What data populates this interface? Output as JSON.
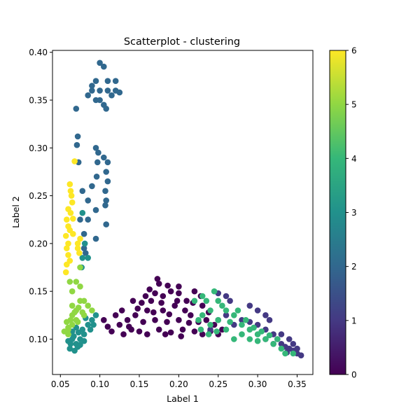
{
  "chart_data": {
    "type": "scatter",
    "title": "Scatterplot - clustering",
    "xlabel": "Label 1",
    "ylabel": "Label 2",
    "xlim": [
      0.04,
      0.37
    ],
    "ylim": [
      0.063,
      0.402
    ],
    "xticks": [
      0.05,
      0.1,
      0.15,
      0.2,
      0.25,
      0.3,
      0.35
    ],
    "xtick_labels": [
      "0.05",
      "0.10",
      "0.15",
      "0.20",
      "0.25",
      "0.30",
      "0.35"
    ],
    "yticks": [
      0.1,
      0.15,
      0.2,
      0.25,
      0.3,
      0.35,
      0.4
    ],
    "ytick_labels": [
      "0.10",
      "0.15",
      "0.20",
      "0.25",
      "0.30",
      "0.35",
      "0.40"
    ],
    "grid": false,
    "colormap": "viridis",
    "colorbar": {
      "range": [
        0,
        6
      ],
      "ticks": [
        0,
        1,
        2,
        3,
        4,
        5,
        6
      ],
      "tick_labels": [
        "0",
        "1",
        "2",
        "3",
        "4",
        "5",
        "6"
      ],
      "stops": [
        "#440154",
        "#443983",
        "#31688e",
        "#21918c",
        "#35b779",
        "#90d743",
        "#fde725"
      ]
    },
    "clusters": [
      {
        "label": 0,
        "color": "#440154",
        "points": [
          [
            0.115,
            0.108
          ],
          [
            0.125,
            0.115
          ],
          [
            0.13,
            0.105
          ],
          [
            0.135,
            0.12
          ],
          [
            0.14,
            0.11
          ],
          [
            0.145,
            0.125
          ],
          [
            0.15,
            0.108
          ],
          [
            0.155,
            0.118
          ],
          [
            0.16,
            0.13
          ],
          [
            0.16,
            0.105
          ],
          [
            0.165,
            0.14
          ],
          [
            0.17,
            0.12
          ],
          [
            0.17,
            0.148
          ],
          [
            0.175,
            0.11
          ],
          [
            0.175,
            0.158
          ],
          [
            0.18,
            0.13
          ],
          [
            0.18,
            0.145
          ],
          [
            0.185,
            0.118
          ],
          [
            0.19,
            0.15
          ],
          [
            0.19,
            0.107
          ],
          [
            0.195,
            0.135
          ],
          [
            0.2,
            0.12
          ],
          [
            0.2,
            0.148
          ],
          [
            0.205,
            0.11
          ],
          [
            0.21,
            0.14
          ],
          [
            0.215,
            0.125
          ],
          [
            0.22,
            0.15
          ],
          [
            0.22,
            0.108
          ],
          [
            0.225,
            0.118
          ],
          [
            0.23,
            0.135
          ],
          [
            0.23,
            0.105
          ],
          [
            0.235,
            0.12
          ],
          [
            0.24,
            0.108
          ],
          [
            0.245,
            0.115
          ],
          [
            0.25,
            0.105
          ],
          [
            0.255,
            0.11
          ],
          [
            0.12,
            0.125
          ],
          [
            0.128,
            0.13
          ],
          [
            0.142,
            0.14
          ],
          [
            0.148,
            0.132
          ],
          [
            0.158,
            0.145
          ],
          [
            0.168,
            0.128
          ],
          [
            0.178,
            0.138
          ],
          [
            0.188,
            0.126
          ],
          [
            0.198,
            0.14
          ],
          [
            0.208,
            0.13
          ],
          [
            0.218,
            0.138
          ],
          [
            0.228,
            0.145
          ],
          [
            0.238,
            0.128
          ],
          [
            0.11,
            0.113
          ],
          [
            0.105,
            0.12
          ],
          [
            0.163,
            0.152
          ],
          [
            0.173,
            0.163
          ],
          [
            0.186,
            0.156
          ],
          [
            0.2,
            0.155
          ],
          [
            0.153,
            0.138
          ],
          [
            0.137,
            0.113
          ],
          [
            0.183,
            0.105
          ],
          [
            0.213,
            0.117
          ],
          [
            0.203,
            0.103
          ]
        ]
      },
      {
        "label": 1,
        "color": "#443983",
        "points": [
          [
            0.24,
            0.11
          ],
          [
            0.25,
            0.12
          ],
          [
            0.26,
            0.125
          ],
          [
            0.27,
            0.115
          ],
          [
            0.28,
            0.12
          ],
          [
            0.29,
            0.118
          ],
          [
            0.3,
            0.115
          ],
          [
            0.31,
            0.11
          ],
          [
            0.32,
            0.105
          ],
          [
            0.325,
            0.1
          ],
          [
            0.33,
            0.095
          ],
          [
            0.335,
            0.092
          ],
          [
            0.34,
            0.09
          ],
          [
            0.345,
            0.088
          ],
          [
            0.35,
            0.085
          ],
          [
            0.355,
            0.083
          ],
          [
            0.29,
            0.135
          ],
          [
            0.3,
            0.13
          ],
          [
            0.31,
            0.125
          ],
          [
            0.315,
            0.12
          ],
          [
            0.25,
            0.148
          ],
          [
            0.26,
            0.145
          ],
          [
            0.265,
            0.14
          ],
          [
            0.33,
            0.105
          ],
          [
            0.34,
            0.1
          ],
          [
            0.35,
            0.09
          ],
          [
            0.345,
            0.095
          ],
          [
            0.337,
            0.086
          ],
          [
            0.32,
            0.095
          ],
          [
            0.31,
            0.1
          ]
        ]
      },
      {
        "label": 2,
        "color": "#31688e",
        "points": [
          [
            0.1,
            0.389
          ],
          [
            0.105,
            0.385
          ],
          [
            0.095,
            0.37
          ],
          [
            0.11,
            0.37
          ],
          [
            0.12,
            0.37
          ],
          [
            0.09,
            0.36
          ],
          [
            0.1,
            0.36
          ],
          [
            0.11,
            0.36
          ],
          [
            0.12,
            0.36
          ],
          [
            0.125,
            0.358
          ],
          [
            0.095,
            0.35
          ],
          [
            0.1,
            0.35
          ],
          [
            0.115,
            0.355
          ],
          [
            0.085,
            0.355
          ],
          [
            0.09,
            0.365
          ],
          [
            0.105,
            0.345
          ],
          [
            0.07,
            0.341
          ],
          [
            0.108,
            0.341
          ],
          [
            0.072,
            0.312
          ],
          [
            0.071,
            0.303
          ],
          [
            0.095,
            0.3
          ],
          [
            0.098,
            0.295
          ],
          [
            0.105,
            0.29
          ],
          [
            0.097,
            0.285
          ],
          [
            0.11,
            0.285
          ],
          [
            0.073,
            0.285
          ],
          [
            0.108,
            0.275
          ],
          [
            0.096,
            0.27
          ],
          [
            0.11,
            0.265
          ],
          [
            0.09,
            0.26
          ],
          [
            0.107,
            0.255
          ],
          [
            0.078,
            0.255
          ],
          [
            0.085,
            0.245
          ],
          [
            0.108,
            0.245
          ],
          [
            0.107,
            0.24
          ],
          [
            0.095,
            0.235
          ],
          [
            0.075,
            0.225
          ],
          [
            0.085,
            0.225
          ],
          [
            0.108,
            0.22
          ],
          [
            0.08,
            0.21
          ],
          [
            0.095,
            0.205
          ],
          [
            0.08,
            0.195
          ],
          [
            0.082,
            0.19
          ]
        ]
      },
      {
        "label": 3,
        "color": "#21918c",
        "points": [
          [
            0.078,
            0.232
          ],
          [
            0.081,
            0.2
          ],
          [
            0.078,
            0.185
          ],
          [
            0.077,
            0.175
          ],
          [
            0.085,
            0.185
          ],
          [
            0.065,
            0.1
          ],
          [
            0.07,
            0.095
          ],
          [
            0.06,
            0.098
          ],
          [
            0.062,
            0.09
          ],
          [
            0.068,
            0.088
          ],
          [
            0.072,
            0.092
          ],
          [
            0.075,
            0.1
          ],
          [
            0.08,
            0.105
          ],
          [
            0.085,
            0.115
          ],
          [
            0.09,
            0.12
          ],
          [
            0.095,
            0.125
          ],
          [
            0.065,
            0.108
          ],
          [
            0.07,
            0.112
          ],
          [
            0.075,
            0.094
          ],
          [
            0.08,
            0.098
          ],
          [
            0.063,
            0.095
          ],
          [
            0.067,
            0.103
          ],
          [
            0.073,
            0.107
          ],
          [
            0.078,
            0.11
          ],
          [
            0.088,
            0.11
          ],
          [
            0.092,
            0.115
          ],
          [
            0.082,
            0.122
          ]
        ]
      },
      {
        "label": 4,
        "color": "#35b779",
        "points": [
          [
            0.22,
            0.14
          ],
          [
            0.23,
            0.145
          ],
          [
            0.24,
            0.13
          ],
          [
            0.24,
            0.115
          ],
          [
            0.25,
            0.14
          ],
          [
            0.25,
            0.12
          ],
          [
            0.26,
            0.13
          ],
          [
            0.26,
            0.11
          ],
          [
            0.27,
            0.125
          ],
          [
            0.27,
            0.1
          ],
          [
            0.28,
            0.115
          ],
          [
            0.28,
            0.105
          ],
          [
            0.29,
            0.11
          ],
          [
            0.29,
            0.1
          ],
          [
            0.3,
            0.105
          ],
          [
            0.3,
            0.098
          ],
          [
            0.31,
            0.1
          ],
          [
            0.32,
            0.095
          ],
          [
            0.33,
            0.09
          ],
          [
            0.335,
            0.085
          ],
          [
            0.23,
            0.125
          ],
          [
            0.235,
            0.14
          ],
          [
            0.245,
            0.15
          ],
          [
            0.255,
            0.135
          ],
          [
            0.265,
            0.118
          ],
          [
            0.275,
            0.13
          ],
          [
            0.285,
            0.12
          ],
          [
            0.295,
            0.112
          ],
          [
            0.305,
            0.108
          ],
          [
            0.315,
            0.104
          ],
          [
            0.325,
            0.1
          ],
          [
            0.345,
            0.085
          ],
          [
            0.225,
            0.12
          ],
          [
            0.228,
            0.11
          ],
          [
            0.238,
            0.105
          ],
          [
            0.248,
            0.108
          ]
        ]
      },
      {
        "label": 5,
        "color": "#90d743",
        "points": [
          [
            0.06,
            0.11
          ],
          [
            0.065,
            0.115
          ],
          [
            0.07,
            0.12
          ],
          [
            0.065,
            0.125
          ],
          [
            0.07,
            0.13
          ],
          [
            0.075,
            0.14
          ],
          [
            0.08,
            0.14
          ],
          [
            0.075,
            0.155
          ],
          [
            0.085,
            0.135
          ],
          [
            0.09,
            0.13
          ],
          [
            0.08,
            0.125
          ],
          [
            0.065,
            0.135
          ],
          [
            0.07,
            0.16
          ],
          [
            0.062,
            0.16
          ],
          [
            0.065,
            0.15
          ],
          [
            0.075,
            0.175
          ],
          [
            0.06,
            0.105
          ],
          [
            0.055,
            0.108
          ],
          [
            0.058,
            0.118
          ],
          [
            0.063,
            0.12
          ],
          [
            0.068,
            0.128
          ],
          [
            0.073,
            0.133
          ],
          [
            0.078,
            0.128
          ],
          [
            0.06,
            0.112
          ],
          [
            0.072,
            0.118
          ]
        ]
      },
      {
        "label": 6,
        "color": "#fde725",
        "points": [
          [
            0.068,
            0.286
          ],
          [
            0.062,
            0.262
          ],
          [
            0.063,
            0.255
          ],
          [
            0.064,
            0.25
          ],
          [
            0.065,
            0.243
          ],
          [
            0.06,
            0.236
          ],
          [
            0.063,
            0.232
          ],
          [
            0.066,
            0.226
          ],
          [
            0.058,
            0.225
          ],
          [
            0.06,
            0.218
          ],
          [
            0.062,
            0.214
          ],
          [
            0.057,
            0.208
          ],
          [
            0.06,
            0.2
          ],
          [
            0.058,
            0.195
          ],
          [
            0.06,
            0.188
          ],
          [
            0.062,
            0.182
          ],
          [
            0.058,
            0.178
          ],
          [
            0.057,
            0.17
          ],
          [
            0.072,
            0.2
          ],
          [
            0.075,
            0.205
          ],
          [
            0.072,
            0.195
          ],
          [
            0.074,
            0.19
          ],
          [
            0.066,
            0.21
          ]
        ]
      }
    ]
  }
}
